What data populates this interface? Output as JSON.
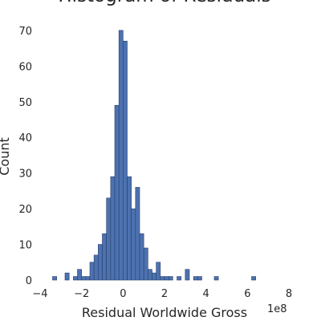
{
  "chart_data": {
    "type": "bar",
    "title": "Histogram of Residuals",
    "xlabel": "Residual Worldwide Gross",
    "ylabel": "Count",
    "x_offset_label": "1e8",
    "xlim": [
      -4,
      8
    ],
    "ylim": [
      0,
      72
    ],
    "xticks": [
      -4,
      -2,
      0,
      2,
      4,
      6,
      8
    ],
    "xtick_labels": [
      "−4",
      "−2",
      "0",
      "2",
      "4",
      "6",
      "8"
    ],
    "yticks": [
      0,
      10,
      20,
      30,
      40,
      50,
      60,
      70
    ],
    "ytick_labels": [
      "0",
      "10",
      "20",
      "30",
      "40",
      "50",
      "60",
      "70"
    ],
    "grid": false,
    "bin_width": 0.2,
    "bin_left_edges": [
      -3.4,
      -3.2,
      -3.0,
      -2.8,
      -2.6,
      -2.4,
      -2.2,
      -2.0,
      -1.8,
      -1.6,
      -1.4,
      -1.2,
      -1.0,
      -0.8,
      -0.6,
      -0.4,
      -0.2,
      0.0,
      0.2,
      0.4,
      0.6,
      0.8,
      1.0,
      1.2,
      1.4,
      1.6,
      1.8,
      2.0,
      2.2,
      2.4,
      2.6,
      2.8,
      3.0,
      3.2,
      3.4,
      3.6,
      3.8,
      4.0,
      4.2,
      4.4,
      4.6,
      4.8,
      5.0,
      5.2,
      5.4,
      5.6,
      5.8,
      6.0,
      6.2
    ],
    "counts": [
      1,
      0,
      0,
      2,
      0,
      1,
      3,
      1,
      1,
      5,
      7,
      10,
      13,
      23,
      29,
      49,
      70,
      67,
      29,
      20,
      26,
      13,
      9,
      3,
      2,
      5,
      1,
      1,
      1,
      0,
      1,
      0,
      3,
      0,
      1,
      1,
      0,
      0,
      0,
      1,
      0,
      0,
      0,
      0,
      0,
      0,
      0,
      0,
      1
    ]
  }
}
